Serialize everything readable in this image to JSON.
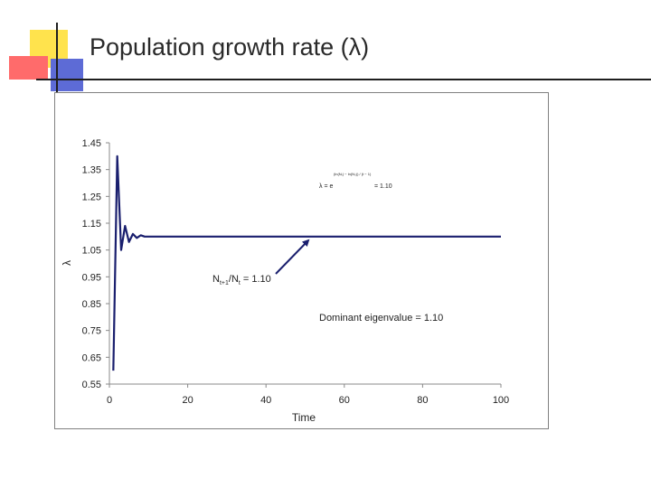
{
  "slide": {
    "title": "Population growth rate (λ)"
  },
  "colors": {
    "line": "#1a1f6e",
    "accent_yellow": "#ffe34d",
    "accent_red": "#ff6b6b",
    "accent_blue": "#5d6bd6"
  },
  "chart_data": {
    "type": "line",
    "title": "",
    "xlabel": "Time",
    "ylabel": "λ",
    "xlim": [
      0,
      100
    ],
    "ylim": [
      0.55,
      1.45
    ],
    "x_ticks": [
      "0",
      "20",
      "40",
      "60",
      "80",
      "100"
    ],
    "y_ticks": [
      "1.45",
      "1.35",
      "1.25",
      "1.15",
      "1.05",
      "0.95",
      "0.85",
      "0.75",
      "0.65",
      "0.55"
    ],
    "grid": false,
    "series": [
      {
        "x": [
          1,
          2,
          3,
          4,
          5,
          6,
          7,
          8,
          9,
          10,
          12,
          15,
          20,
          30,
          40,
          50,
          60,
          70,
          80,
          90,
          100
        ],
        "y": [
          0.6,
          1.4,
          1.05,
          1.14,
          1.08,
          1.11,
          1.095,
          1.105,
          1.1,
          1.1,
          1.1,
          1.1,
          1.1,
          1.1,
          1.1,
          1.1,
          1.1,
          1.1,
          1.1,
          1.1,
          1.1
        ]
      }
    ],
    "annotations": {
      "formula_lhs": "λ = e",
      "formula_exponent": "(ln(Nₜ) − ln(N₀)) / (t − 1)",
      "formula_rhs": "= 1.10",
      "ratio_main": "N",
      "ratio_sub1": "t+1",
      "ratio_mid": "/N",
      "ratio_sub2": "t",
      "ratio_value": " = 1.10",
      "eigenvalue": "Dominant eigenvalue = 1.10"
    }
  }
}
